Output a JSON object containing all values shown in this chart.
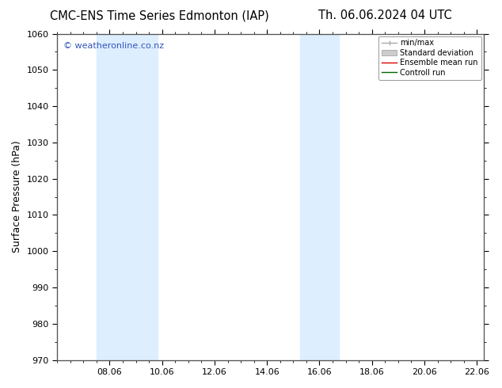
{
  "title_left": "CMC-ENS Time Series Edmonton (IAP)",
  "title_right": "Th. 06.06.2024 04 UTC",
  "ylabel": "Surface Pressure (hPa)",
  "ylim": [
    970,
    1060
  ],
  "yticks": [
    970,
    980,
    990,
    1000,
    1010,
    1020,
    1030,
    1040,
    1050,
    1060
  ],
  "xlim": [
    0,
    16.25
  ],
  "xtick_labels": [
    "08.06",
    "10.06",
    "12.06",
    "14.06",
    "16.06",
    "18.06",
    "20.06",
    "22.06"
  ],
  "xtick_positions": [
    2,
    4,
    6,
    8,
    10,
    12,
    14,
    16
  ],
  "shaded_bands": [
    {
      "x_start": 1.5,
      "x_end": 3.83,
      "color": "#ddeeff"
    },
    {
      "x_start": 9.25,
      "x_end": 10.75,
      "color": "#ddeeff"
    }
  ],
  "bg_color": "#ffffff",
  "plot_bg_color": "#ffffff",
  "border_color": "#555555",
  "watermark_text": "© weatheronline.co.nz",
  "watermark_color": "#3355bb",
  "title_fontsize": 10.5,
  "axis_label_fontsize": 9,
  "tick_fontsize": 8,
  "watermark_fontsize": 8,
  "legend_fontsize": 7,
  "font_family": "DejaVu Sans"
}
